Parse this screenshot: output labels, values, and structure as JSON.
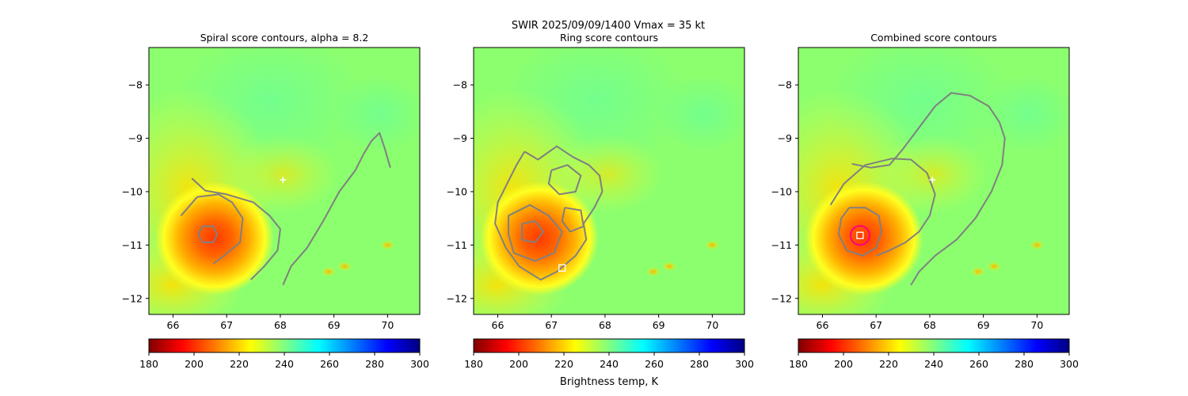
{
  "suptitle": "SWIR  2025/09/09/1400    Vmax = 35 kt",
  "colors": {
    "contour": "#808080",
    "center_circle": "#ff0080",
    "marker": "#ffffff",
    "jet": [
      "#800000",
      "#ff0000",
      "#ff8000",
      "#ffff00",
      "#80ff80",
      "#00ffff",
      "#0080ff",
      "#0000ff",
      "#000080"
    ]
  },
  "colorbar": {
    "ticks": [
      "180",
      "200",
      "220",
      "240",
      "260",
      "280",
      "300"
    ],
    "label": "Brightness temp, K",
    "range": [
      180,
      300
    ]
  },
  "chart_data": [
    {
      "type": "heatmap",
      "title": "Spiral score contours, alpha =  8.2",
      "xlim": [
        65.55,
        70.6
      ],
      "ylim": [
        -12.3,
        -7.3
      ],
      "xticks": [
        "66",
        "67",
        "68",
        "69",
        "70"
      ],
      "yticks": [
        "−8",
        "−9",
        "−10",
        "−11",
        "−12"
      ],
      "cold_cloud_center": [
        66.7,
        -10.8
      ],
      "contours": [
        [
          [
            66.35,
            -9.75
          ],
          [
            66.6,
            -9.98
          ],
          [
            67.0,
            -10.05
          ],
          [
            67.5,
            -10.2
          ],
          [
            67.8,
            -10.45
          ],
          [
            68.0,
            -10.7
          ],
          [
            67.95,
            -11.1
          ],
          [
            67.7,
            -11.4
          ],
          [
            67.45,
            -11.65
          ]
        ],
        [
          [
            66.15,
            -10.45
          ],
          [
            66.45,
            -10.1
          ],
          [
            66.85,
            -10.05
          ],
          [
            67.1,
            -10.2
          ],
          [
            67.3,
            -10.5
          ],
          [
            67.25,
            -10.95
          ],
          [
            66.95,
            -11.2
          ],
          [
            66.75,
            -11.35
          ]
        ],
        [
          [
            66.55,
            -10.65
          ],
          [
            66.75,
            -10.65
          ],
          [
            66.82,
            -10.8
          ],
          [
            66.75,
            -10.95
          ],
          [
            66.55,
            -10.95
          ],
          [
            66.47,
            -10.8
          ],
          [
            66.55,
            -10.65
          ]
        ],
        [
          [
            68.05,
            -11.75
          ],
          [
            68.2,
            -11.4
          ],
          [
            68.5,
            -11.05
          ],
          [
            68.8,
            -10.55
          ],
          [
            69.1,
            -10.0
          ],
          [
            69.4,
            -9.6
          ],
          [
            69.55,
            -9.3
          ],
          [
            69.7,
            -9.05
          ],
          [
            69.85,
            -8.9
          ],
          [
            69.95,
            -9.2
          ],
          [
            70.05,
            -9.55
          ]
        ]
      ],
      "markers": [
        {
          "type": "plus",
          "lon": 68.05,
          "lat": -9.78
        }
      ]
    },
    {
      "type": "heatmap",
      "title": "Ring score contours",
      "xlim": [
        65.55,
        70.6
      ],
      "ylim": [
        -12.3,
        -7.3
      ],
      "xticks": [
        "66",
        "67",
        "68",
        "69",
        "70"
      ],
      "yticks": [
        "−8",
        "−9",
        "−10",
        "−11",
        "−12"
      ],
      "cold_cloud_center": [
        66.7,
        -10.8
      ],
      "contours": [
        [
          [
            66.5,
            -9.25
          ],
          [
            66.75,
            -9.4
          ],
          [
            67.1,
            -9.15
          ],
          [
            67.4,
            -9.35
          ],
          [
            67.7,
            -9.5
          ],
          [
            67.9,
            -9.7
          ],
          [
            67.95,
            -10.0
          ],
          [
            67.8,
            -10.3
          ],
          [
            67.6,
            -10.6
          ],
          [
            67.65,
            -10.9
          ],
          [
            67.45,
            -11.2
          ],
          [
            67.1,
            -11.5
          ],
          [
            66.8,
            -11.65
          ],
          [
            66.4,
            -11.4
          ],
          [
            66.15,
            -11.05
          ],
          [
            65.95,
            -10.6
          ],
          [
            66.0,
            -10.2
          ],
          [
            66.2,
            -9.8
          ],
          [
            66.35,
            -9.5
          ],
          [
            66.5,
            -9.25
          ]
        ],
        [
          [
            66.2,
            -10.45
          ],
          [
            66.6,
            -10.25
          ],
          [
            66.95,
            -10.45
          ],
          [
            67.2,
            -10.75
          ],
          [
            67.05,
            -11.15
          ],
          [
            66.7,
            -11.3
          ],
          [
            66.3,
            -11.15
          ],
          [
            66.2,
            -10.8
          ],
          [
            66.2,
            -10.45
          ]
        ],
        [
          [
            67.0,
            -9.6
          ],
          [
            67.3,
            -9.5
          ],
          [
            67.55,
            -9.7
          ],
          [
            67.45,
            -10.0
          ],
          [
            67.15,
            -10.05
          ],
          [
            66.95,
            -9.85
          ],
          [
            67.0,
            -9.6
          ]
        ],
        [
          [
            66.45,
            -10.6
          ],
          [
            66.7,
            -10.55
          ],
          [
            66.85,
            -10.75
          ],
          [
            66.7,
            -10.95
          ],
          [
            66.45,
            -10.9
          ],
          [
            66.45,
            -10.6
          ]
        ],
        [
          [
            67.25,
            -10.3
          ],
          [
            67.55,
            -10.35
          ],
          [
            67.6,
            -10.65
          ],
          [
            67.35,
            -10.75
          ],
          [
            67.2,
            -10.55
          ],
          [
            67.25,
            -10.3
          ]
        ]
      ],
      "markers": [
        {
          "type": "square",
          "lon": 67.2,
          "lat": -11.43
        }
      ]
    },
    {
      "type": "heatmap",
      "title": "Combined score contours",
      "xlim": [
        65.55,
        70.6
      ],
      "ylim": [
        -12.3,
        -7.3
      ],
      "xticks": [
        "66",
        "67",
        "68",
        "69",
        "70"
      ],
      "yticks": [
        "−8",
        "−9",
        "−10",
        "−11",
        "−12"
      ],
      "cold_cloud_center": [
        66.7,
        -10.8
      ],
      "contours": [
        [
          [
            66.15,
            -10.25
          ],
          [
            66.4,
            -9.85
          ],
          [
            66.8,
            -9.5
          ],
          [
            67.3,
            -9.38
          ],
          [
            67.65,
            -9.4
          ],
          [
            67.95,
            -9.65
          ],
          [
            68.1,
            -10.05
          ],
          [
            68.0,
            -10.45
          ],
          [
            67.8,
            -10.75
          ],
          [
            67.55,
            -10.95
          ],
          [
            67.25,
            -11.1
          ],
          [
            67.0,
            -11.2
          ]
        ],
        [
          [
            66.55,
            -9.48
          ],
          [
            66.9,
            -9.55
          ],
          [
            67.25,
            -9.5
          ],
          [
            67.5,
            -9.2
          ],
          [
            67.8,
            -8.8
          ],
          [
            68.1,
            -8.4
          ],
          [
            68.4,
            -8.15
          ],
          [
            68.75,
            -8.2
          ],
          [
            69.1,
            -8.4
          ],
          [
            69.3,
            -8.7
          ],
          [
            69.4,
            -9.0
          ],
          [
            69.35,
            -9.5
          ],
          [
            69.15,
            -10.0
          ],
          [
            68.85,
            -10.5
          ],
          [
            68.5,
            -10.9
          ],
          [
            68.1,
            -11.2
          ],
          [
            67.8,
            -11.5
          ],
          [
            67.65,
            -11.75
          ]
        ],
        [
          [
            66.5,
            -10.3
          ],
          [
            66.8,
            -10.3
          ],
          [
            67.05,
            -10.45
          ],
          [
            67.1,
            -10.75
          ],
          [
            67.0,
            -11.05
          ],
          [
            66.75,
            -11.2
          ],
          [
            66.45,
            -11.1
          ],
          [
            66.3,
            -10.8
          ],
          [
            66.35,
            -10.5
          ],
          [
            66.5,
            -10.3
          ]
        ]
      ],
      "markers": [
        {
          "type": "plus",
          "lon": 68.05,
          "lat": -9.78
        },
        {
          "type": "circle",
          "lon": 66.7,
          "lat": -10.82
        },
        {
          "type": "square",
          "lon": 66.7,
          "lat": -10.82
        }
      ]
    }
  ]
}
